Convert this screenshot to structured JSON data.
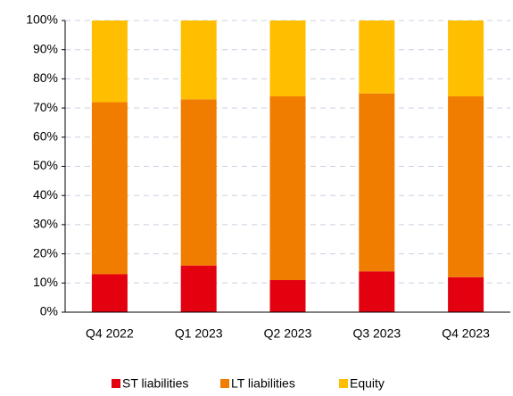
{
  "chart_data": {
    "type": "stacked_bar",
    "categories": [
      "Q4 2022",
      "Q1 2023",
      "Q2 2023",
      "Q3 2023",
      "Q4 2023"
    ],
    "series": [
      {
        "name": "ST liabilities",
        "color": "#e3000f",
        "values": [
          13,
          16,
          11,
          14,
          12
        ]
      },
      {
        "name": "LT liabilities",
        "color": "#f07d00",
        "values": [
          59,
          57,
          63,
          61,
          62
        ]
      },
      {
        "name": "Equity",
        "color": "#ffbe00",
        "values": [
          28,
          27,
          26,
          25,
          26
        ]
      }
    ],
    "ylim": [
      0,
      100
    ],
    "yticks": [
      {
        "value": 0,
        "label": "0%"
      },
      {
        "value": 10,
        "label": "10%"
      },
      {
        "value": 20,
        "label": "20%"
      },
      {
        "value": 30,
        "label": "30%"
      },
      {
        "value": 40,
        "label": "40%"
      },
      {
        "value": 50,
        "label": "50%"
      },
      {
        "value": 60,
        "label": "60%"
      },
      {
        "value": 70,
        "label": "70%"
      },
      {
        "value": 80,
        "label": "80%"
      },
      {
        "value": 90,
        "label": "90%"
      },
      {
        "value": 100,
        "label": "100%"
      }
    ],
    "grid": true,
    "legend": "bottom"
  }
}
